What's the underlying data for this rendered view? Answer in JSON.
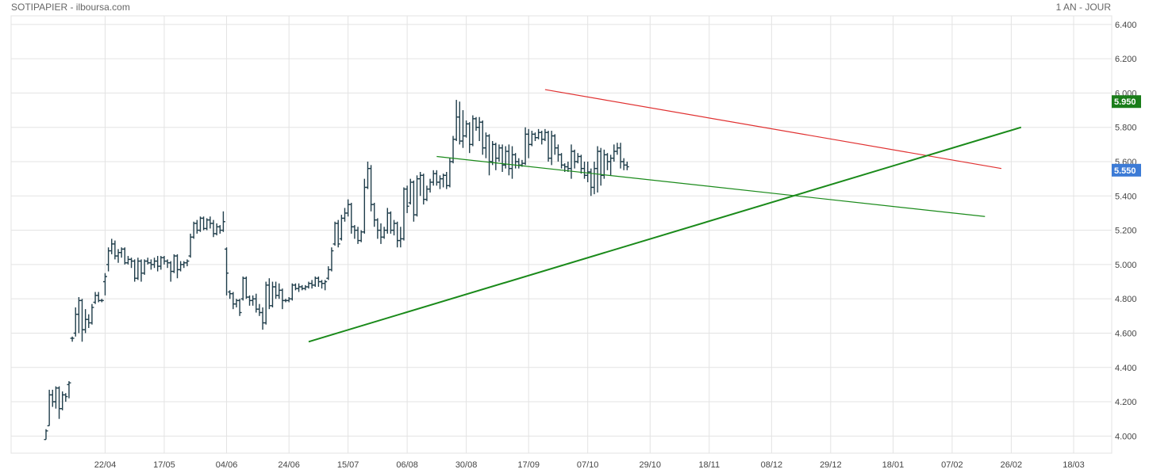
{
  "header": {
    "left_title": "SOTIPAPIER - ilboursa.com",
    "right_title": "1 AN - JOUR"
  },
  "colors": {
    "bars": "#1f3d4a",
    "grid": "#e3e3e3",
    "resistance": "#e03030",
    "support": "#1a8a1a",
    "last_label": "#1a7d1a",
    "prev_label": "#3c7bd6"
  },
  "chart_data": {
    "type": "ohlc",
    "title": "SOTIPAPIER - ilboursa.com",
    "period": "1 AN - JOUR",
    "ylim": [
      3.9,
      6.45
    ],
    "y_ticks": [
      4.0,
      4.2,
      4.4,
      4.6,
      4.8,
      5.0,
      5.2,
      5.4,
      5.6,
      5.8,
      6.0,
      6.2,
      6.4
    ],
    "y_tick_labels": [
      "4.000",
      "4.200",
      "4.400",
      "4.600",
      "4.800",
      "5.000",
      "5.200",
      "5.400",
      "5.600",
      "5.800",
      "6.000",
      "6.200",
      "6.400"
    ],
    "x_tick_labels": [
      "22/04",
      "17/05",
      "04/06",
      "24/06",
      "15/07",
      "06/08",
      "30/08",
      "17/09",
      "07/10",
      "29/10",
      "18/11",
      "08/12",
      "29/12",
      "18/01",
      "07/02",
      "26/02",
      "18/03"
    ],
    "x_tick_index": [
      18,
      36,
      55,
      74,
      92,
      110,
      128,
      147,
      165,
      184,
      202,
      221,
      239,
      258,
      276,
      294,
      313
    ],
    "x_range": [
      0,
      325
    ],
    "price_labels": [
      {
        "value": 5.95,
        "text": "5.950",
        "role": "last"
      },
      {
        "value": 5.55,
        "text": "5.550",
        "role": "prev"
      }
    ],
    "trendlines": [
      {
        "style": "resistance",
        "from": [
          152,
          6.02
        ],
        "to": [
          291,
          5.56
        ]
      },
      {
        "style": "support-thin",
        "from": [
          119,
          5.63
        ],
        "to": [
          286,
          5.28
        ]
      },
      {
        "style": "support-thick",
        "from": [
          80,
          4.55
        ],
        "to": [
          297,
          5.8
        ]
      }
    ],
    "ohlc": [
      [
        3.98,
        4.04,
        3.98,
        4.03
      ],
      [
        4.06,
        4.27,
        4.06,
        4.24
      ],
      [
        4.24,
        4.27,
        4.17,
        4.2
      ],
      [
        4.2,
        4.29,
        4.16,
        4.28
      ],
      [
        4.28,
        4.29,
        4.1,
        4.16
      ],
      [
        4.16,
        4.26,
        4.15,
        4.24
      ],
      [
        4.24,
        4.25,
        4.2,
        4.23
      ],
      [
        4.3,
        4.32,
        4.22,
        4.31
      ],
      [
        4.57,
        4.58,
        4.55,
        4.57
      ],
      [
        4.6,
        4.75,
        4.58,
        4.71
      ],
      [
        4.71,
        4.81,
        4.6,
        4.79
      ],
      [
        4.79,
        4.8,
        4.55,
        4.62
      ],
      [
        4.62,
        4.74,
        4.6,
        4.68
      ],
      [
        4.68,
        4.71,
        4.63,
        4.66
      ],
      [
        4.66,
        4.77,
        4.65,
        4.75
      ],
      [
        4.78,
        4.84,
        4.77,
        4.82
      ],
      [
        4.82,
        4.84,
        4.78,
        4.79
      ],
      [
        4.79,
        4.8,
        4.78,
        4.79
      ],
      [
        4.9,
        4.95,
        4.82,
        4.93
      ],
      [
        5.0,
        5.1,
        4.96,
        5.08
      ],
      [
        5.08,
        5.15,
        5.06,
        5.12
      ],
      [
        5.12,
        5.14,
        5.03,
        5.05
      ],
      [
        5.05,
        5.09,
        5.01,
        5.07
      ],
      [
        5.07,
        5.1,
        5.04,
        5.09
      ],
      [
        5.09,
        5.1,
        5.0,
        5.01
      ],
      [
        5.01,
        5.05,
        5.0,
        5.03
      ],
      [
        5.03,
        5.04,
        4.98,
        5.02
      ],
      [
        5.02,
        5.03,
        4.9,
        4.92
      ],
      [
        4.92,
        5.04,
        4.91,
        5.02
      ],
      [
        5.02,
        5.03,
        4.9,
        4.95
      ],
      [
        4.95,
        5.03,
        4.94,
        5.02
      ],
      [
        5.02,
        5.04,
        5.0,
        5.01
      ],
      [
        5.01,
        5.03,
        4.97,
        5.0
      ],
      [
        5.0,
        5.04,
        4.98,
        5.02
      ],
      [
        5.02,
        5.05,
        4.96,
        4.99
      ],
      [
        4.99,
        5.05,
        4.97,
        5.04
      ],
      [
        5.04,
        5.05,
        5.0,
        5.02
      ],
      [
        5.02,
        5.03,
        4.98,
        5.01
      ],
      [
        5.01,
        5.02,
        4.9,
        4.96
      ],
      [
        4.96,
        5.06,
        4.95,
        5.05
      ],
      [
        5.05,
        5.06,
        4.92,
        4.97
      ],
      [
        4.97,
        5.02,
        4.96,
        5.0
      ],
      [
        5.0,
        5.02,
        4.98,
        5.01
      ],
      [
        5.01,
        5.03,
        4.99,
        5.02
      ],
      [
        5.05,
        5.18,
        5.04,
        5.16
      ],
      [
        5.16,
        5.25,
        5.15,
        5.24
      ],
      [
        5.24,
        5.26,
        5.18,
        5.2
      ],
      [
        5.2,
        5.28,
        5.19,
        5.27
      ],
      [
        5.27,
        5.28,
        5.2,
        5.21
      ],
      [
        5.21,
        5.27,
        5.2,
        5.26
      ],
      [
        5.26,
        5.28,
        5.21,
        5.24
      ],
      [
        5.24,
        5.26,
        5.16,
        5.18
      ],
      [
        5.18,
        5.24,
        5.17,
        5.22
      ],
      [
        5.22,
        5.23,
        5.18,
        5.2
      ],
      [
        5.2,
        5.31,
        5.19,
        5.25
      ],
      [
        5.09,
        5.1,
        4.82,
        4.95
      ],
      [
        4.84,
        4.85,
        4.8,
        4.83
      ],
      [
        4.83,
        4.84,
        4.74,
        4.77
      ],
      [
        4.77,
        4.8,
        4.75,
        4.79
      ],
      [
        4.79,
        4.8,
        4.7,
        4.72
      ],
      [
        4.8,
        4.93,
        4.79,
        4.92
      ],
      [
        4.92,
        4.93,
        4.8,
        4.81
      ],
      [
        4.81,
        4.82,
        4.76,
        4.79
      ],
      [
        4.79,
        4.82,
        4.76,
        4.8
      ],
      [
        4.8,
        4.83,
        4.72,
        4.74
      ],
      [
        4.74,
        4.77,
        4.7,
        4.72
      ],
      [
        4.72,
        4.75,
        4.62,
        4.66
      ],
      [
        4.66,
        4.9,
        4.65,
        4.88
      ],
      [
        4.88,
        4.92,
        4.74,
        4.76
      ],
      [
        4.76,
        4.9,
        4.75,
        4.87
      ],
      [
        4.87,
        4.9,
        4.8,
        4.82
      ],
      [
        4.82,
        4.89,
        4.8,
        4.85
      ],
      [
        4.85,
        4.86,
        4.74,
        4.79
      ],
      [
        4.79,
        4.8,
        4.78,
        4.79
      ],
      [
        4.79,
        4.81,
        4.78,
        4.8
      ],
      [
        4.8,
        4.89,
        4.79,
        4.88
      ],
      [
        4.88,
        4.89,
        4.85,
        4.86
      ],
      [
        4.86,
        4.89,
        4.84,
        4.87
      ],
      [
        4.87,
        4.88,
        4.85,
        4.86
      ],
      [
        4.86,
        4.88,
        4.85,
        4.87
      ],
      [
        4.87,
        4.9,
        4.86,
        4.89
      ],
      [
        4.89,
        4.91,
        4.86,
        4.88
      ],
      [
        4.88,
        4.93,
        4.87,
        4.92
      ],
      [
        4.92,
        4.93,
        4.87,
        4.9
      ],
      [
        4.9,
        4.91,
        4.86,
        4.89
      ],
      [
        4.89,
        4.91,
        4.85,
        4.9
      ],
      [
        4.92,
        4.99,
        4.91,
        4.97
      ],
      [
        4.97,
        5.1,
        4.96,
        5.08
      ],
      [
        5.12,
        5.25,
        5.11,
        5.24
      ],
      [
        5.24,
        5.26,
        5.1,
        5.12
      ],
      [
        5.15,
        5.29,
        5.14,
        5.27
      ],
      [
        5.27,
        5.33,
        5.25,
        5.3
      ],
      [
        5.3,
        5.38,
        5.28,
        5.35
      ],
      [
        5.35,
        5.36,
        5.18,
        5.22
      ],
      [
        5.22,
        5.23,
        5.15,
        5.2
      ],
      [
        5.2,
        5.22,
        5.12,
        5.14
      ],
      [
        5.14,
        5.2,
        5.13,
        5.19
      ],
      [
        5.19,
        5.5,
        5.18,
        5.45
      ],
      [
        5.45,
        5.6,
        5.44,
        5.56
      ],
      [
        5.56,
        5.58,
        5.31,
        5.35
      ],
      [
        5.35,
        5.36,
        5.22,
        5.26
      ],
      [
        5.26,
        5.27,
        5.15,
        5.2
      ],
      [
        5.2,
        5.24,
        5.12,
        5.16
      ],
      [
        5.16,
        5.22,
        5.15,
        5.2
      ],
      [
        5.2,
        5.33,
        5.18,
        5.3
      ],
      [
        5.3,
        5.31,
        5.18,
        5.2
      ],
      [
        5.2,
        5.26,
        5.17,
        5.24
      ],
      [
        5.24,
        5.25,
        5.1,
        5.14
      ],
      [
        5.14,
        5.22,
        5.1,
        5.15
      ],
      [
        5.15,
        5.45,
        5.14,
        5.44
      ],
      [
        5.44,
        5.46,
        5.3,
        5.34
      ],
      [
        5.36,
        5.5,
        5.35,
        5.48
      ],
      [
        5.48,
        5.49,
        5.25,
        5.29
      ],
      [
        5.29,
        5.52,
        5.28,
        5.5
      ],
      [
        5.5,
        5.54,
        5.4,
        5.52
      ],
      [
        5.52,
        5.53,
        5.35,
        5.38
      ],
      [
        5.38,
        5.46,
        5.37,
        5.44
      ],
      [
        5.44,
        5.5,
        5.42,
        5.48
      ],
      [
        5.48,
        5.55,
        5.46,
        5.53
      ],
      [
        5.53,
        5.55,
        5.46,
        5.48
      ],
      [
        5.48,
        5.52,
        5.44,
        5.5
      ],
      [
        5.5,
        5.53,
        5.45,
        5.52
      ],
      [
        5.52,
        5.54,
        5.44,
        5.46
      ],
      [
        5.46,
        5.62,
        5.45,
        5.6
      ],
      [
        5.6,
        5.75,
        5.59,
        5.73
      ],
      [
        5.73,
        5.96,
        5.72,
        5.86
      ],
      [
        5.86,
        5.95,
        5.7,
        5.72
      ],
      [
        5.72,
        5.9,
        5.68,
        5.75
      ],
      [
        5.75,
        5.84,
        5.74,
        5.82
      ],
      [
        5.82,
        5.83,
        5.65,
        5.7
      ],
      [
        5.7,
        5.87,
        5.69,
        5.85
      ],
      [
        5.85,
        5.86,
        5.78,
        5.8
      ],
      [
        5.8,
        5.86,
        5.72,
        5.83
      ],
      [
        5.83,
        5.84,
        5.64,
        5.68
      ],
      [
        5.68,
        5.77,
        5.62,
        5.75
      ],
      [
        5.75,
        5.76,
        5.52,
        5.6
      ],
      [
        5.6,
        5.72,
        5.58,
        5.7
      ],
      [
        5.7,
        5.71,
        5.55,
        5.62
      ],
      [
        5.62,
        5.7,
        5.6,
        5.68
      ],
      [
        5.68,
        5.7,
        5.54,
        5.58
      ],
      [
        5.58,
        5.69,
        5.56,
        5.66
      ],
      [
        5.66,
        5.7,
        5.52,
        5.56
      ],
      [
        5.56,
        5.69,
        5.5,
        5.64
      ],
      [
        5.64,
        5.65,
        5.56,
        5.6
      ],
      [
        5.6,
        5.62,
        5.56,
        5.58
      ],
      [
        5.58,
        5.61,
        5.57,
        5.59
      ],
      [
        5.59,
        5.8,
        5.58,
        5.76
      ],
      [
        5.76,
        5.79,
        5.62,
        5.7
      ],
      [
        5.7,
        5.78,
        5.69,
        5.76
      ],
      [
        5.76,
        5.77,
        5.72,
        5.74
      ],
      [
        5.74,
        5.79,
        5.73,
        5.77
      ],
      [
        5.77,
        5.78,
        5.7,
        5.73
      ],
      [
        5.73,
        5.79,
        5.72,
        5.77
      ],
      [
        5.77,
        5.78,
        5.6,
        5.62
      ],
      [
        5.62,
        5.78,
        5.58,
        5.75
      ],
      [
        5.75,
        5.76,
        5.64,
        5.68
      ],
      [
        5.68,
        5.7,
        5.6,
        5.64
      ],
      [
        5.64,
        5.65,
        5.56,
        5.58
      ],
      [
        5.58,
        5.59,
        5.54,
        5.57
      ],
      [
        5.57,
        5.6,
        5.54,
        5.56
      ],
      [
        5.56,
        5.7,
        5.5,
        5.66
      ],
      [
        5.66,
        5.67,
        5.56,
        5.6
      ],
      [
        5.6,
        5.65,
        5.59,
        5.63
      ],
      [
        5.63,
        5.64,
        5.53,
        5.56
      ],
      [
        5.56,
        5.6,
        5.5,
        5.52
      ],
      [
        5.52,
        5.6,
        5.48,
        5.54
      ],
      [
        5.54,
        5.56,
        5.4,
        5.45
      ],
      [
        5.45,
        5.6,
        5.41,
        5.56
      ],
      [
        5.56,
        5.69,
        5.42,
        5.66
      ],
      [
        5.66,
        5.68,
        5.46,
        5.52
      ],
      [
        5.52,
        5.67,
        5.5,
        5.64
      ],
      [
        5.64,
        5.65,
        5.55,
        5.6
      ],
      [
        5.6,
        5.64,
        5.52,
        5.62
      ],
      [
        5.62,
        5.7,
        5.6,
        5.66
      ],
      [
        5.66,
        5.71,
        5.64,
        5.68
      ],
      [
        5.68,
        5.71,
        5.56,
        5.6
      ],
      [
        5.6,
        5.62,
        5.55,
        5.58
      ],
      [
        5.58,
        5.6,
        5.55,
        5.57
      ]
    ]
  }
}
